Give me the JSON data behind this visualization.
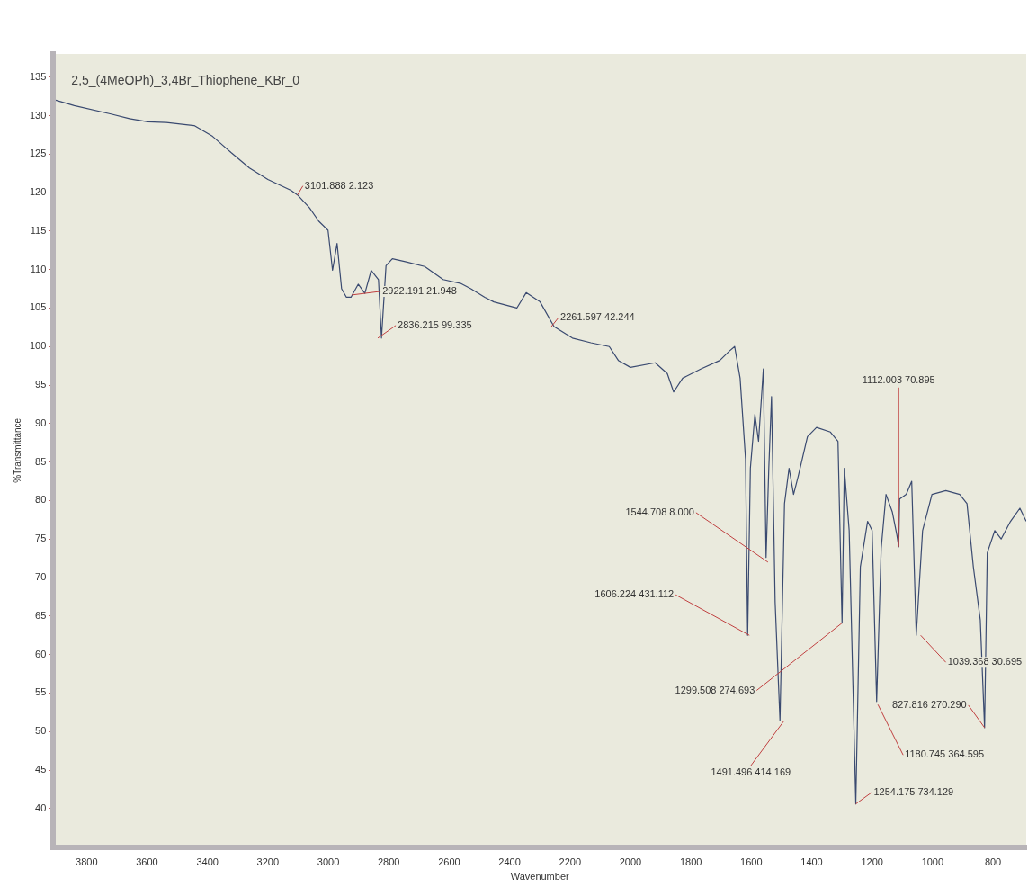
{
  "chart_data": {
    "type": "line",
    "title": "2,5_(4MeOPh)_3,4Br_Thiophene_KBr_0",
    "xlabel": "Wavenumber",
    "ylabel": "%Transmittance",
    "xlim": [
      3910,
      690
    ],
    "ylim": [
      35,
      138
    ],
    "xticks": [
      3800,
      3600,
      3400,
      3200,
      3000,
      2800,
      2600,
      2400,
      2200,
      2000,
      1800,
      1600,
      1400,
      1200,
      1000,
      800
    ],
    "yticks": [
      40,
      45,
      50,
      55,
      60,
      65,
      70,
      75,
      80,
      85,
      90,
      95,
      100,
      105,
      110,
      115,
      120,
      125,
      130,
      135
    ],
    "grid": false,
    "legend": false,
    "marker": "none",
    "line_style": "solid",
    "series": [
      {
        "color": "#3a4a70",
        "x": [
          3902,
          3841,
          3719,
          3658,
          3597,
          3536,
          3444,
          3383,
          3322,
          3261,
          3200,
          3124,
          3102,
          3062,
          3032,
          3001,
          2986,
          2971,
          2956,
          2940,
          2925,
          2901,
          2879,
          2858,
          2834,
          2824,
          2809,
          2788,
          2742,
          2681,
          2620,
          2562,
          2528,
          2482,
          2452,
          2376,
          2345,
          2299,
          2253,
          2192,
          2131,
          2070,
          2040,
          2000,
          1918,
          1878,
          1857,
          1827,
          1766,
          1704,
          1673,
          1655,
          1637,
          1619,
          1612,
          1603,
          1588,
          1576,
          1560,
          1551,
          1542,
          1533,
          1521,
          1505,
          1490,
          1475,
          1460,
          1445,
          1414,
          1384,
          1338,
          1313,
          1299.508,
          1292,
          1276,
          1254,
          1239,
          1215,
          1200,
          1185,
          1170,
          1154,
          1133,
          1118,
          1112.003,
          1109,
          1087,
          1069,
          1054,
          1033,
          1002,
          956,
          910,
          886,
          865,
          842,
          827.816,
          819,
          794,
          773,
          742,
          711,
          690
        ],
        "values": [
          132.0,
          131.3,
          130.2,
          129.6,
          129.2,
          129.1,
          128.7,
          127.3,
          125.2,
          123.2,
          121.7,
          120.3,
          119.7,
          118.0,
          116.3,
          115.1,
          109.9,
          113.4,
          107.5,
          106.4,
          106.4,
          108.1,
          106.9,
          109.9,
          108.7,
          101.1,
          110.5,
          111.4,
          111.0,
          110.4,
          108.7,
          108.2,
          107.5,
          106.4,
          105.8,
          105.0,
          107.0,
          105.8,
          102.6,
          101.1,
          100.5,
          100.0,
          98.2,
          97.3,
          97.9,
          96.5,
          94.1,
          95.9,
          97.1,
          98.2,
          99.4,
          100.0,
          95.9,
          85.4,
          62.5,
          84.2,
          91.2,
          87.7,
          97.1,
          72.6,
          84.2,
          93.5,
          66.8,
          51.4,
          79.6,
          84.2,
          80.8,
          83.1,
          88.3,
          89.5,
          88.9,
          87.7,
          64.1,
          84.2,
          76.1,
          40.6,
          71.4,
          77.3,
          76.1,
          53.9,
          73.8,
          80.8,
          78.5,
          75.5,
          74,
          80.2,
          80.8,
          82.5,
          62.5,
          76.1,
          80.8,
          81.3,
          80.8,
          79.6,
          71.4,
          64.5,
          50.5,
          73.2,
          76.1,
          75.0,
          77.3,
          79.0,
          77.3
        ]
      }
    ],
    "annotations": [
      {
        "text": "3101.888 2.123",
        "x": 3101.888,
        "y": 119.7
      },
      {
        "text": "2922.191 21.948",
        "x": 2922.191,
        "y": 106.7
      },
      {
        "text": "2836.215 99.335",
        "x": 2836.215,
        "y": 101.1
      },
      {
        "text": "2261.597 42.244",
        "x": 2261.597,
        "y": 102.6
      },
      {
        "text": "1112.003 70.895",
        "x": 1112.003,
        "y": 74
      },
      {
        "text": "1544.708 8.000",
        "x": 1544.708,
        "y": 72
      },
      {
        "text": "1606.224 431.112",
        "x": 1606.224,
        "y": 62.5
      },
      {
        "text": "1299.508 274.693",
        "x": 1299.508,
        "y": 64.1
      },
      {
        "text": "1491.496 414.169",
        "x": 1491.496,
        "y": 51.4
      },
      {
        "text": "1254.175 734.129",
        "x": 1254.175,
        "y": 40.6
      },
      {
        "text": "1180.745 364.595",
        "x": 1180.745,
        "y": 53.5
      },
      {
        "text": "1039.368 30.695",
        "x": 1039.368,
        "y": 62.5
      },
      {
        "text": "827.816 270.290",
        "x": 827.816,
        "y": 50.5
      }
    ]
  }
}
